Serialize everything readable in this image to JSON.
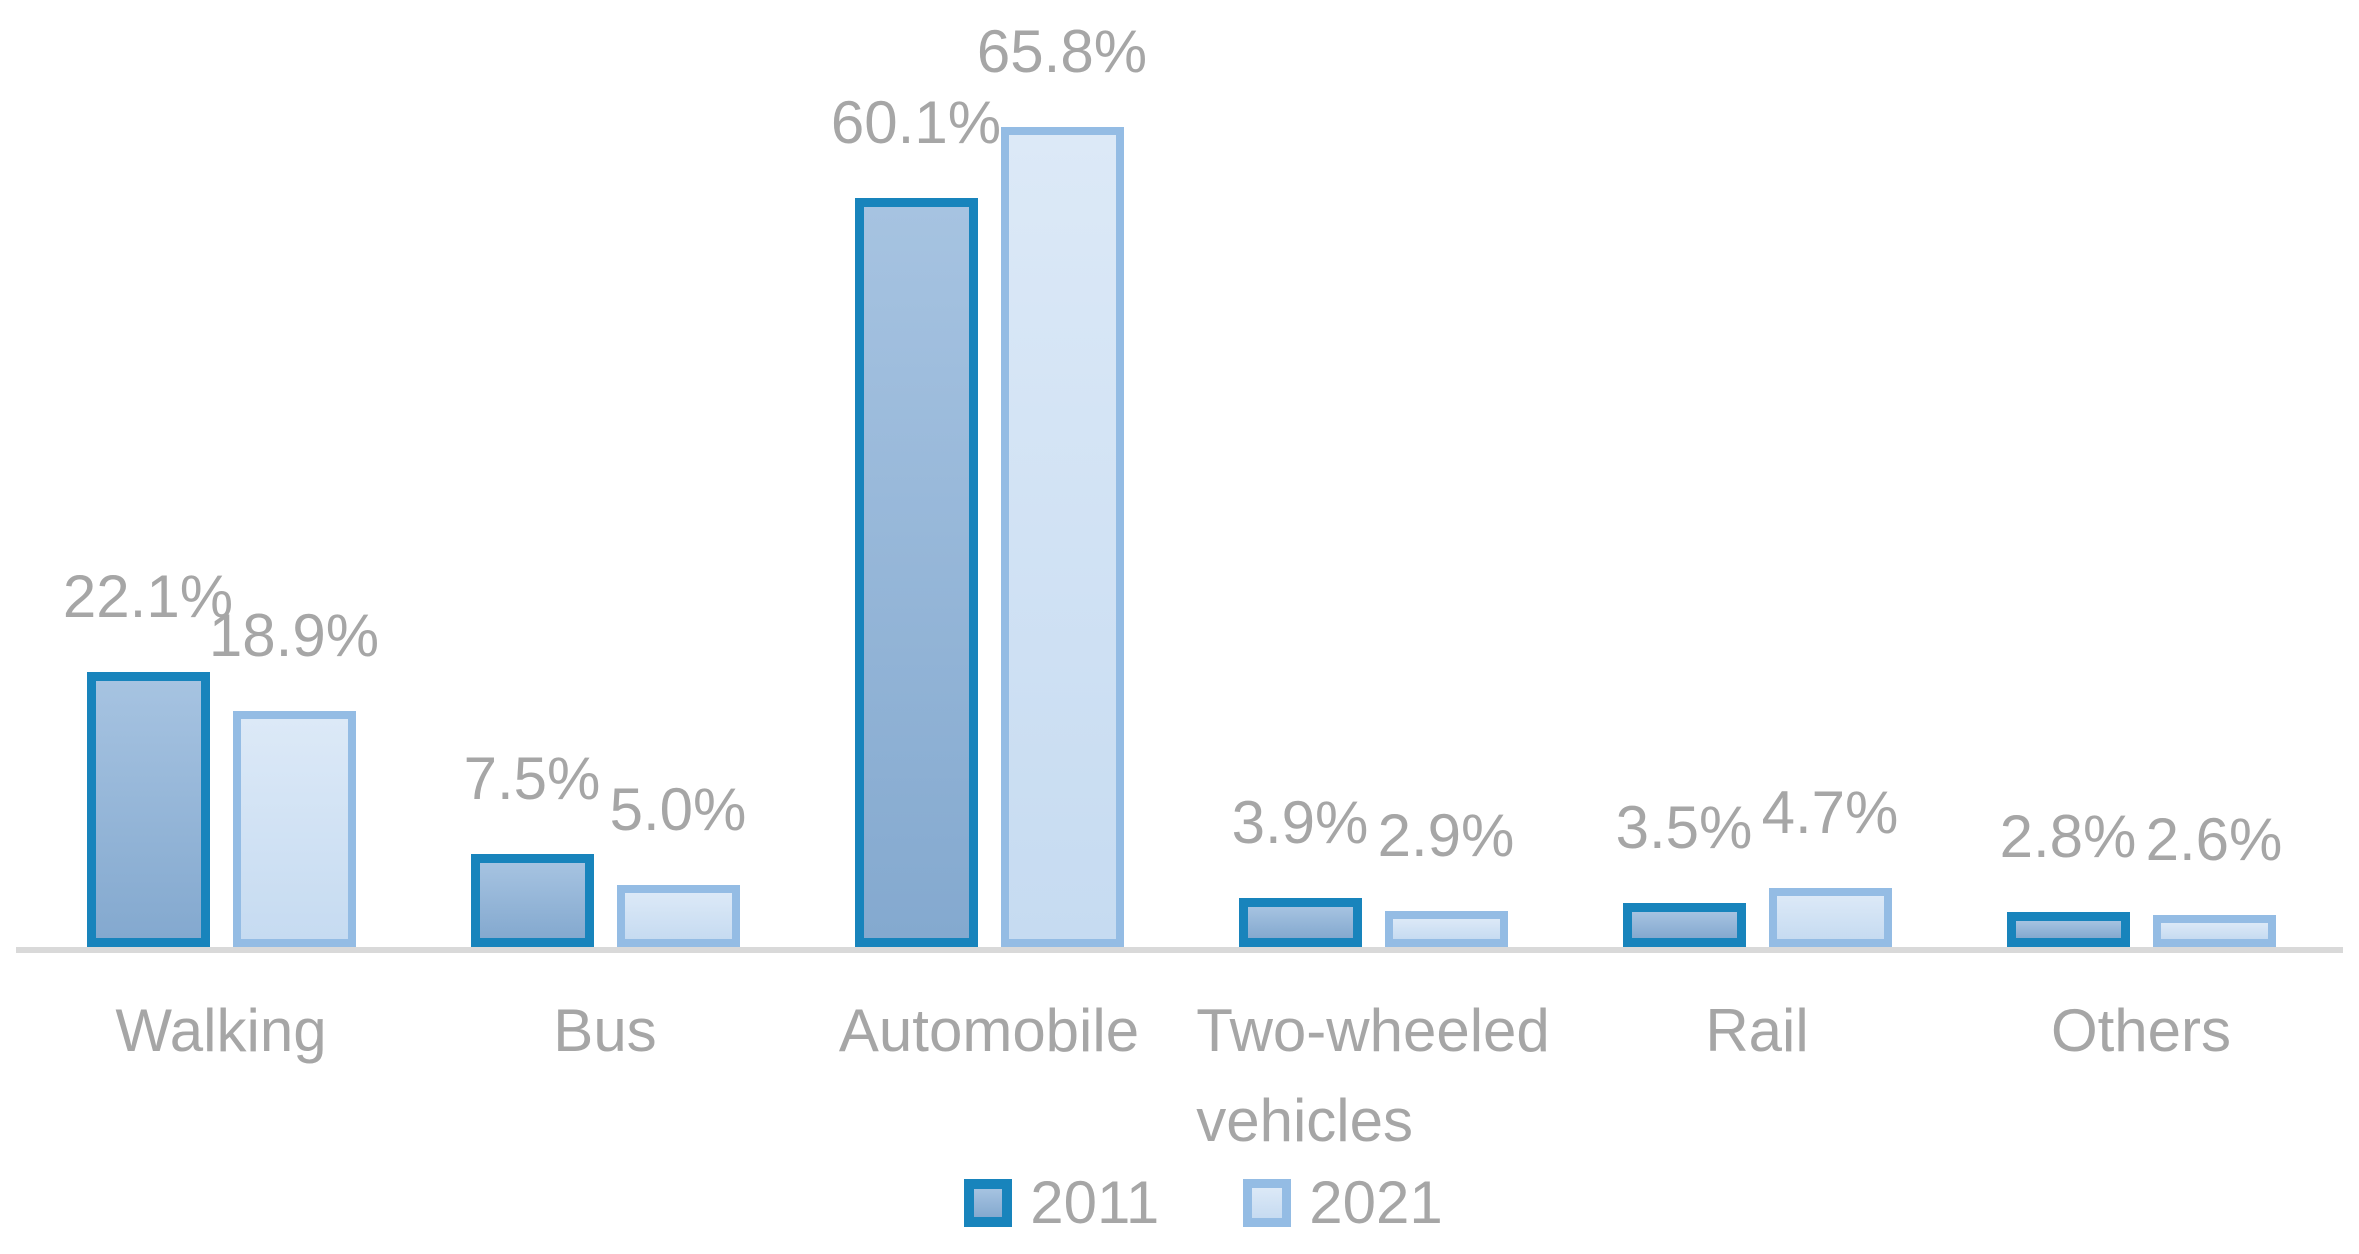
{
  "chart_data": {
    "type": "bar",
    "title": "",
    "xlabel": "",
    "ylabel": "",
    "unit": "%",
    "categories": [
      "Walking",
      "Bus",
      "Automobile",
      "Two-wheeled vehicles",
      "Rail",
      "Others"
    ],
    "category_label_lines": [
      [
        "Walking"
      ],
      [
        "Bus"
      ],
      [
        "Automobile"
      ],
      [
        "Two-wheeled",
        "vehicles"
      ],
      [
        "Rail"
      ],
      [
        "Others"
      ]
    ],
    "series": [
      {
        "name": "2011",
        "values": [
          22.1,
          7.5,
          60.1,
          3.9,
          3.5,
          2.8
        ]
      },
      {
        "name": "2021",
        "values": [
          18.9,
          5.0,
          65.8,
          2.9,
          4.7,
          2.6
        ]
      }
    ],
    "value_labels": [
      [
        "22.1%",
        "7.5%",
        "60.1%",
        "3.9%",
        "3.5%",
        "2.8%"
      ],
      [
        "18.9%",
        "5.0%",
        "65.8%",
        "2.9%",
        "4.7%",
        "2.6%"
      ]
    ],
    "ylim": [
      0,
      70
    ],
    "y_axis_visible": false,
    "gridlines": false,
    "data_labels": true,
    "legend_position": "bottom",
    "colors": {
      "series_2011_border": "#1884BC",
      "series_2011_fill_top": "#A6C3E1",
      "series_2011_fill_bottom": "#84A9CF",
      "series_2021_border": "#94BCE4",
      "series_2021_fill_top": "#DCE9F7",
      "series_2021_fill_bottom": "#C6DBF1",
      "label_text": "#A6A6A6",
      "axis_line": "#D9D9D9",
      "background": "#FFFFFF"
    }
  }
}
